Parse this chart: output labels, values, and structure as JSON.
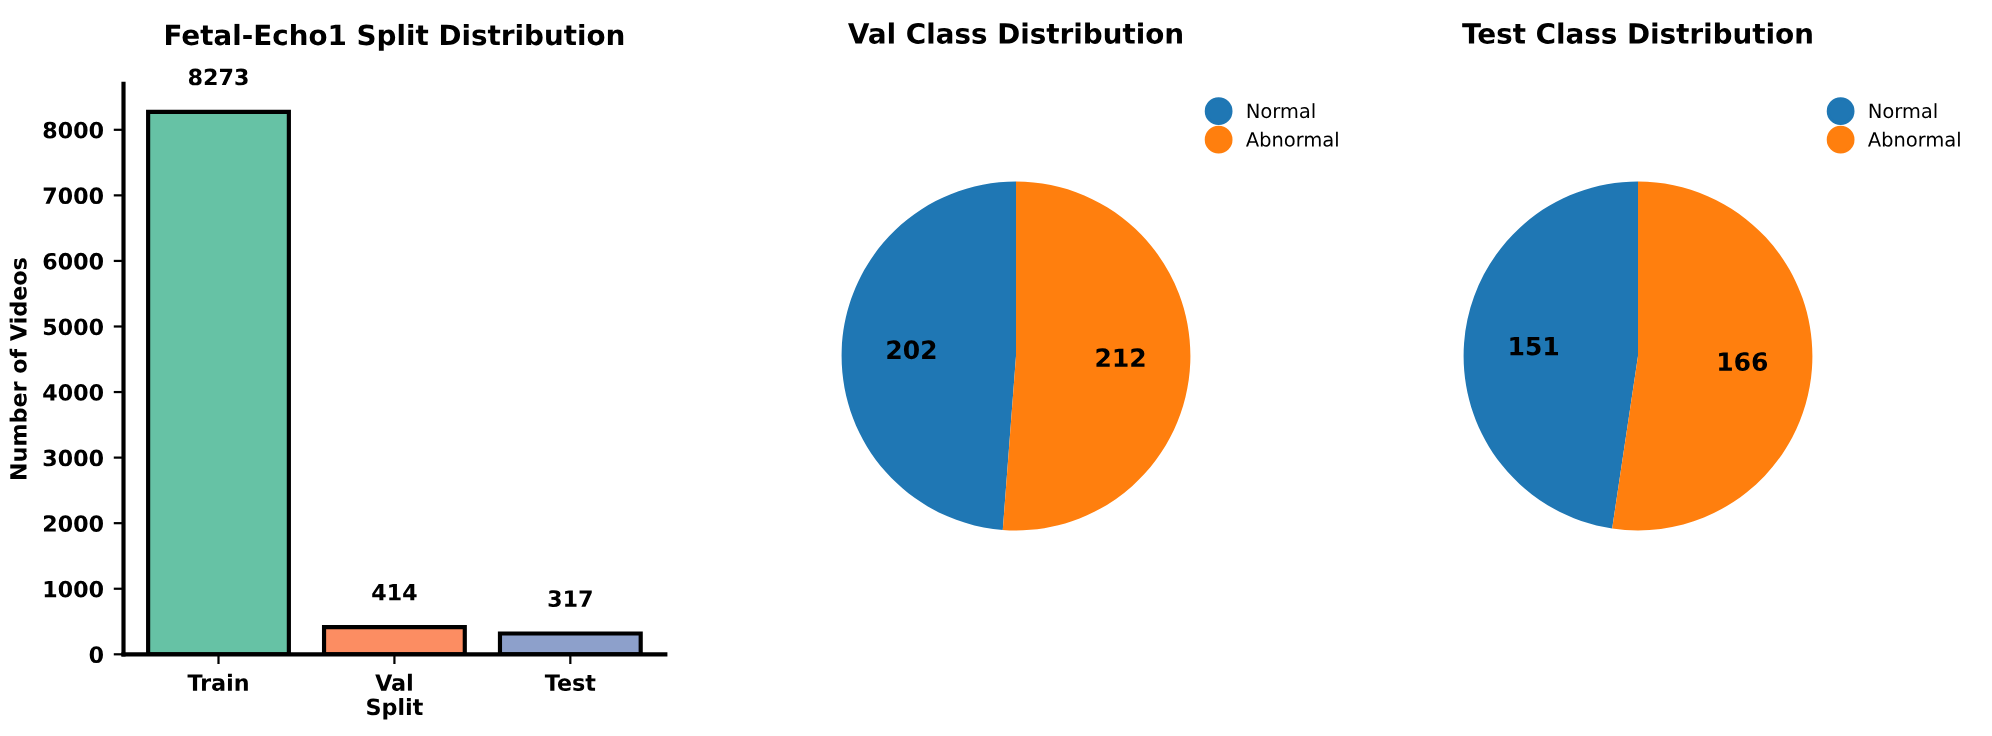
{
  "chart_data": [
    {
      "type": "bar",
      "title": "Fetal-Echo1 Split Distribution",
      "xlabel": "Split",
      "ylabel": "Number of Videos",
      "categories": [
        "Train",
        "Val",
        "Test"
      ],
      "values": [
        8273,
        414,
        317
      ],
      "colors": [
        "#66c2a5",
        "#fc8d62",
        "#8da0cb"
      ],
      "ylim": [
        0,
        8700
      ],
      "yticks": [
        0,
        1000,
        2000,
        3000,
        4000,
        5000,
        6000,
        7000,
        8000
      ],
      "data_labels": true,
      "grid": false
    },
    {
      "type": "pie",
      "title": "Val Class Distribution",
      "categories": [
        "Normal",
        "Abnormal"
      ],
      "values": [
        202,
        212
      ],
      "colors": [
        "#1f77b4",
        "#ff7f0e"
      ],
      "data_labels": true,
      "legend": "top right"
    },
    {
      "type": "pie",
      "title": "Test Class Distribution",
      "categories": [
        "Normal",
        "Abnormal"
      ],
      "values": [
        151,
        166
      ],
      "colors": [
        "#1f77b4",
        "#ff7f0e"
      ],
      "data_labels": true,
      "legend": "top right"
    }
  ]
}
